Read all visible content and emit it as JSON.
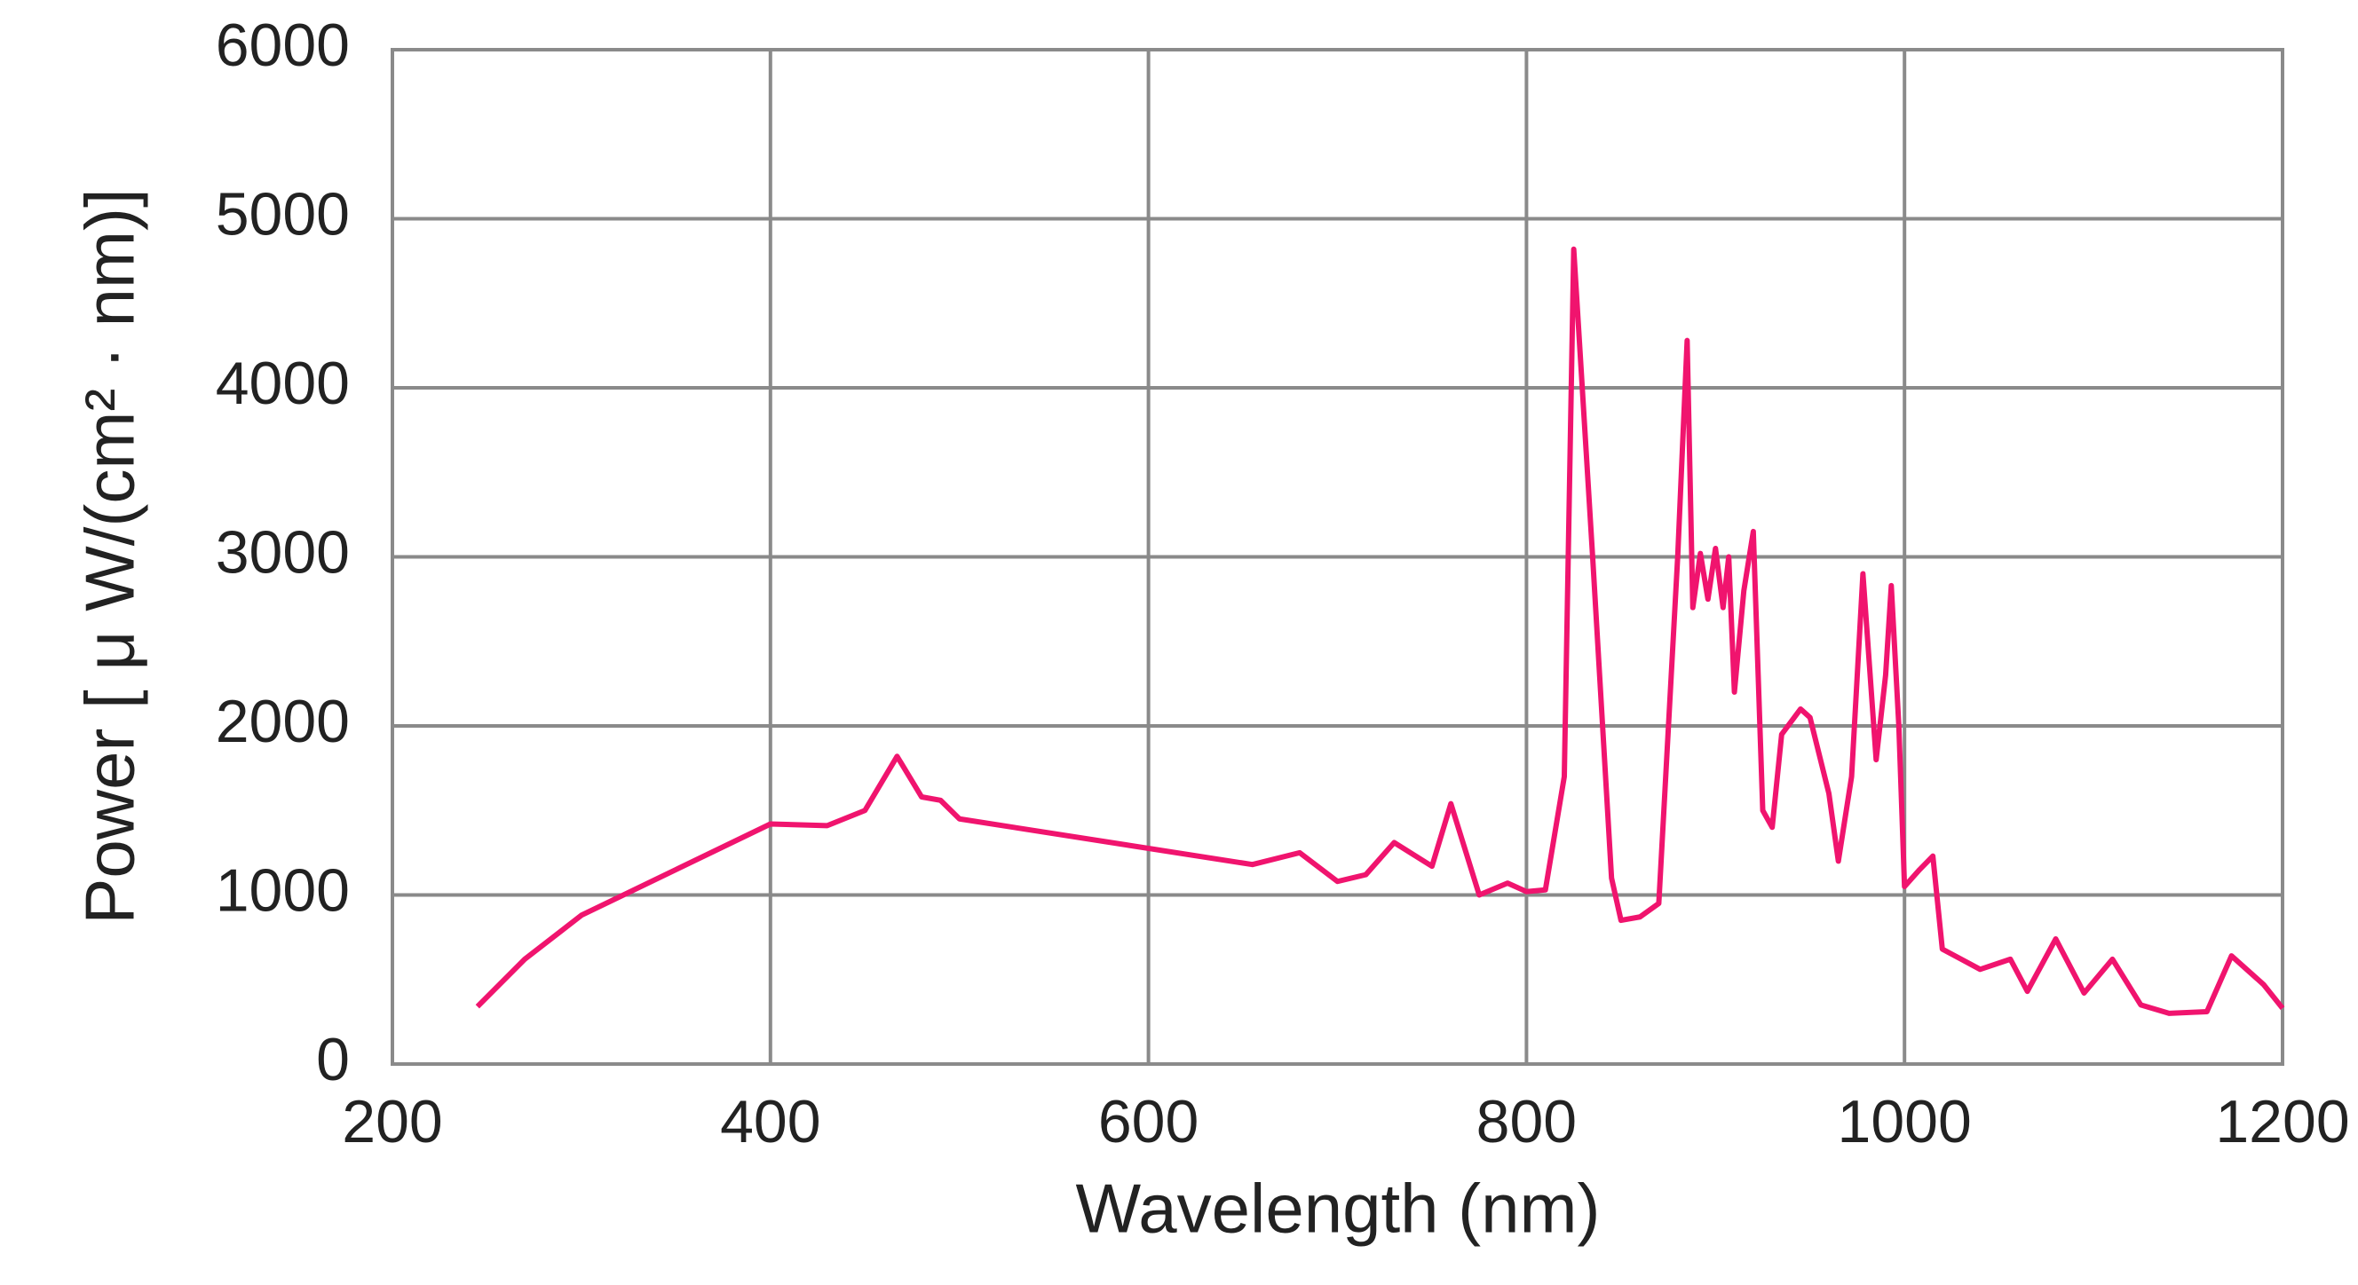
{
  "chart_data": {
    "type": "line",
    "x_label": "Wavelength (nm)",
    "y_label": "Power [ μ W/(cm² · nm)]",
    "xlim": [
      200,
      1200
    ],
    "xticks": [
      200,
      400,
      600,
      800,
      1000,
      1200
    ],
    "ylim": [
      0,
      6000
    ],
    "yticks": [
      0,
      1000,
      2000,
      3000,
      4000,
      5000,
      6000
    ],
    "grid": true,
    "series": [
      {
        "color": "#f0146e",
        "x": [
          245,
          270,
          300,
          350,
          400,
          430,
          450,
          467,
          480,
          490,
          500,
          655,
          680,
          700,
          715,
          730,
          750,
          760,
          775,
          790,
          800,
          810,
          820,
          825,
          835,
          845,
          850,
          860,
          870,
          880,
          885,
          888,
          892,
          896,
          900,
          904,
          907,
          910,
          915,
          920,
          925,
          930,
          935,
          945,
          950,
          960,
          965,
          972,
          978,
          985,
          990,
          993,
          997,
          1000,
          1008,
          1015,
          1020,
          1030,
          1040,
          1056,
          1065,
          1080,
          1095,
          1110,
          1125,
          1140,
          1160,
          1173,
          1190,
          1200
        ],
        "values": [
          340,
          620,
          880,
          1150,
          1420,
          1410,
          1500,
          1820,
          1580,
          1560,
          1450,
          1180,
          1250,
          1080,
          1120,
          1310,
          1170,
          1540,
          1000,
          1070,
          1020,
          1030,
          1700,
          4820,
          3000,
          1100,
          850,
          870,
          950,
          3000,
          4280,
          2700,
          3020,
          2750,
          3050,
          2700,
          3000,
          2200,
          2800,
          3150,
          1500,
          1400,
          1950,
          2100,
          2050,
          1600,
          1200,
          1700,
          2900,
          1800,
          2300,
          2830,
          2000,
          1050,
          1150,
          1230,
          680,
          620,
          560,
          620,
          430,
          740,
          420,
          620,
          350,
          300,
          310,
          640,
          470,
          330
        ]
      }
    ]
  }
}
